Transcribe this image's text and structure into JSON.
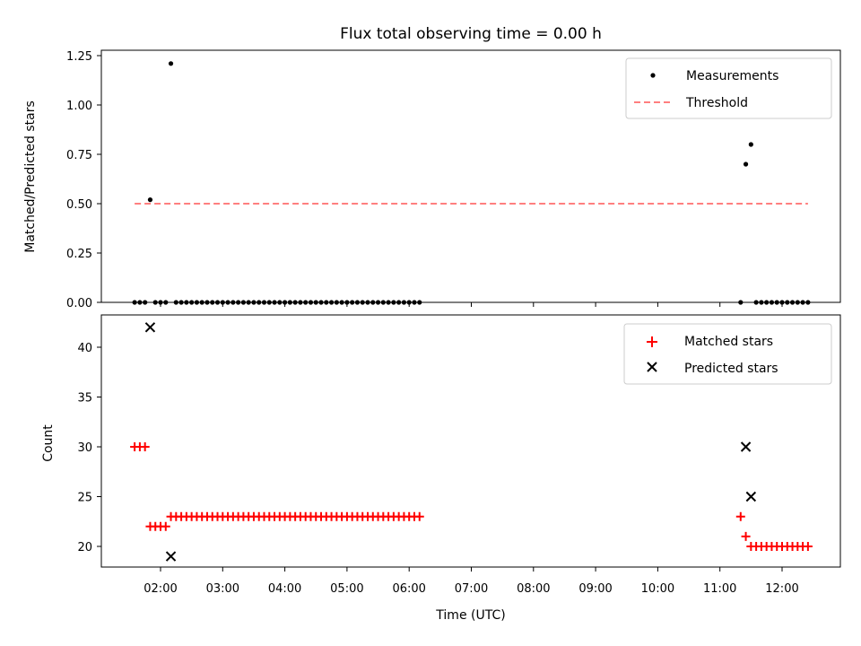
{
  "chart_data": [
    {
      "type": "scatter",
      "title": "Flux total observing time = 0.00 h",
      "xlabel": "",
      "ylabel": "Matched/Predicted stars",
      "ylim": [
        0,
        1.27
      ],
      "y_ticks": [
        "0.00",
        "0.25",
        "0.50",
        "0.75",
        "1.00",
        "1.25"
      ],
      "legend_position": "top-right",
      "grid": false,
      "threshold": {
        "name": "Threshold",
        "value": 0.5,
        "x_start": "01:35",
        "x_end": "12:25",
        "color": "#ff7f7f",
        "style": "dashed"
      },
      "series": [
        {
          "name": "Measurements",
          "color": "#000000",
          "marker": "dot",
          "points": [
            [
              "01:35",
              0
            ],
            [
              "01:40",
              0
            ],
            [
              "01:45",
              0
            ],
            [
              "01:50",
              0.52
            ],
            [
              "01:55",
              0
            ],
            [
              "02:00",
              0
            ],
            [
              "02:05",
              0
            ],
            [
              "02:10",
              1.21
            ],
            [
              "02:15",
              0
            ],
            [
              "02:20",
              0
            ],
            [
              "02:25",
              0
            ],
            [
              "02:30",
              0
            ],
            [
              "02:35",
              0
            ],
            [
              "02:40",
              0
            ],
            [
              "02:45",
              0
            ],
            [
              "02:50",
              0
            ],
            [
              "02:55",
              0
            ],
            [
              "03:00",
              0
            ],
            [
              "03:05",
              0
            ],
            [
              "03:10",
              0
            ],
            [
              "03:15",
              0
            ],
            [
              "03:20",
              0
            ],
            [
              "03:25",
              0
            ],
            [
              "03:30",
              0
            ],
            [
              "03:35",
              0
            ],
            [
              "03:40",
              0
            ],
            [
              "03:45",
              0
            ],
            [
              "03:50",
              0
            ],
            [
              "03:55",
              0
            ],
            [
              "04:00",
              0
            ],
            [
              "04:05",
              0
            ],
            [
              "04:10",
              0
            ],
            [
              "04:15",
              0
            ],
            [
              "04:20",
              0
            ],
            [
              "04:25",
              0
            ],
            [
              "04:30",
              0
            ],
            [
              "04:35",
              0
            ],
            [
              "04:40",
              0
            ],
            [
              "04:45",
              0
            ],
            [
              "04:50",
              0
            ],
            [
              "04:55",
              0
            ],
            [
              "05:00",
              0
            ],
            [
              "05:05",
              0
            ],
            [
              "05:10",
              0
            ],
            [
              "05:15",
              0
            ],
            [
              "05:20",
              0
            ],
            [
              "05:25",
              0
            ],
            [
              "05:30",
              0
            ],
            [
              "05:35",
              0
            ],
            [
              "05:40",
              0
            ],
            [
              "05:45",
              0
            ],
            [
              "05:50",
              0
            ],
            [
              "05:55",
              0
            ],
            [
              "06:00",
              0
            ],
            [
              "06:05",
              0
            ],
            [
              "06:10",
              0
            ],
            [
              "11:20",
              0
            ],
            [
              "11:25",
              0.7
            ],
            [
              "11:30",
              0.8
            ],
            [
              "11:35",
              0
            ],
            [
              "11:40",
              0
            ],
            [
              "11:45",
              0
            ],
            [
              "11:50",
              0
            ],
            [
              "11:55",
              0
            ],
            [
              "12:00",
              0
            ],
            [
              "12:05",
              0
            ],
            [
              "12:10",
              0
            ],
            [
              "12:15",
              0
            ],
            [
              "12:20",
              0
            ],
            [
              "12:25",
              0
            ]
          ]
        }
      ]
    },
    {
      "type": "scatter",
      "title": "",
      "xlabel": "Time (UTC)",
      "ylabel": "Count",
      "ylim": [
        18,
        43
      ],
      "y_ticks": [
        "20",
        "25",
        "30",
        "35",
        "40"
      ],
      "x_ticks": [
        "02:00",
        "03:00",
        "04:00",
        "05:00",
        "06:00",
        "07:00",
        "08:00",
        "09:00",
        "10:00",
        "11:00",
        "12:00"
      ],
      "legend_position": "top-right",
      "grid": false,
      "series": [
        {
          "name": "Matched stars",
          "color": "#ff0000",
          "marker": "plus",
          "points": [
            [
              "01:35",
              30
            ],
            [
              "01:40",
              30
            ],
            [
              "01:45",
              30
            ],
            [
              "01:50",
              22
            ],
            [
              "01:55",
              22
            ],
            [
              "02:00",
              22
            ],
            [
              "02:05",
              22
            ],
            [
              "02:10",
              23
            ],
            [
              "02:15",
              23
            ],
            [
              "02:20",
              23
            ],
            [
              "02:25",
              23
            ],
            [
              "02:30",
              23
            ],
            [
              "02:35",
              23
            ],
            [
              "02:40",
              23
            ],
            [
              "02:45",
              23
            ],
            [
              "02:50",
              23
            ],
            [
              "02:55",
              23
            ],
            [
              "03:00",
              23
            ],
            [
              "03:05",
              23
            ],
            [
              "03:10",
              23
            ],
            [
              "03:15",
              23
            ],
            [
              "03:20",
              23
            ],
            [
              "03:25",
              23
            ],
            [
              "03:30",
              23
            ],
            [
              "03:35",
              23
            ],
            [
              "03:40",
              23
            ],
            [
              "03:45",
              23
            ],
            [
              "03:50",
              23
            ],
            [
              "03:55",
              23
            ],
            [
              "04:00",
              23
            ],
            [
              "04:05",
              23
            ],
            [
              "04:10",
              23
            ],
            [
              "04:15",
              23
            ],
            [
              "04:20",
              23
            ],
            [
              "04:25",
              23
            ],
            [
              "04:30",
              23
            ],
            [
              "04:35",
              23
            ],
            [
              "04:40",
              23
            ],
            [
              "04:45",
              23
            ],
            [
              "04:50",
              23
            ],
            [
              "04:55",
              23
            ],
            [
              "05:00",
              23
            ],
            [
              "05:05",
              23
            ],
            [
              "05:10",
              23
            ],
            [
              "05:15",
              23
            ],
            [
              "05:20",
              23
            ],
            [
              "05:25",
              23
            ],
            [
              "05:30",
              23
            ],
            [
              "05:35",
              23
            ],
            [
              "05:40",
              23
            ],
            [
              "05:45",
              23
            ],
            [
              "05:50",
              23
            ],
            [
              "05:55",
              23
            ],
            [
              "06:00",
              23
            ],
            [
              "06:05",
              23
            ],
            [
              "06:10",
              23
            ],
            [
              "11:20",
              23
            ],
            [
              "11:25",
              21
            ],
            [
              "11:30",
              20
            ],
            [
              "11:35",
              20
            ],
            [
              "11:40",
              20
            ],
            [
              "11:45",
              20
            ],
            [
              "11:50",
              20
            ],
            [
              "11:55",
              20
            ],
            [
              "12:00",
              20
            ],
            [
              "12:05",
              20
            ],
            [
              "12:10",
              20
            ],
            [
              "12:15",
              20
            ],
            [
              "12:20",
              20
            ],
            [
              "12:25",
              20
            ]
          ]
        },
        {
          "name": "Predicted stars",
          "color": "#000000",
          "marker": "x",
          "points": [
            [
              "01:50",
              42
            ],
            [
              "02:10",
              19
            ],
            [
              "11:25",
              30
            ],
            [
              "11:30",
              25
            ]
          ]
        }
      ]
    }
  ]
}
